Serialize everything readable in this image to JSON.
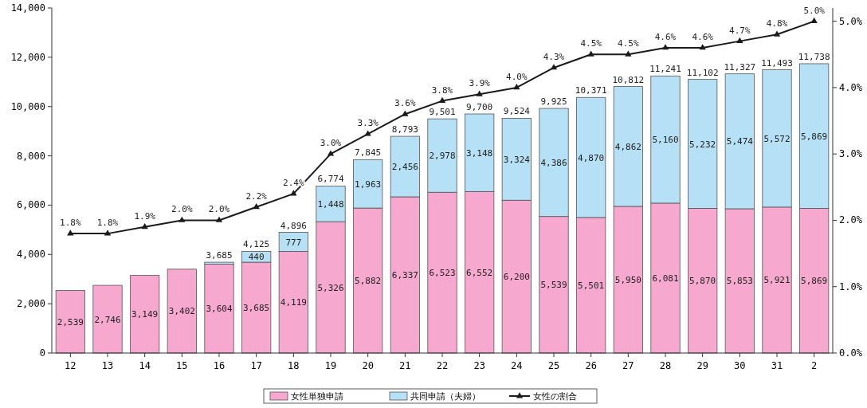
{
  "chart_data": {
    "type": "bar",
    "stacked": true,
    "categories": [
      "12",
      "13",
      "14",
      "15",
      "16",
      "17",
      "18",
      "19",
      "20",
      "21",
      "22",
      "23",
      "24",
      "25",
      "26",
      "27",
      "28",
      "29",
      "30",
      "31",
      "2"
    ],
    "series": [
      {
        "name": "女性単独申請",
        "color": "#f7a8cf",
        "values": [
          2539,
          2746,
          3149,
          3402,
          3604,
          3685,
          4119,
          5326,
          5882,
          6337,
          6523,
          6552,
          6200,
          5539,
          5501,
          5950,
          6081,
          5870,
          5853,
          5921,
          5869
        ],
        "value_labels": [
          "2,539",
          "2,746",
          "3,149",
          "3,402",
          "3,604",
          "3,685",
          "4,119",
          "5,326",
          "5,882",
          "6,337",
          "6,523",
          "6,552",
          "6,200",
          "5,539",
          "5,501",
          "5,950",
          "6,081",
          "5,870",
          "5,853",
          "5,921",
          "5,869"
        ]
      },
      {
        "name": "共同申請（夫婦）",
        "color": "#b5e0f5",
        "values": [
          null,
          null,
          null,
          null,
          80,
          440,
          777,
          1448,
          1963,
          2456,
          2978,
          3148,
          3324,
          4386,
          4870,
          4862,
          5160,
          5232,
          5474,
          5572,
          5869
        ],
        "value_labels": [
          null,
          null,
          null,
          null,
          null,
          "440",
          "777",
          "1,448",
          "1,963",
          "2,456",
          "2,978",
          "3,148",
          "3,324",
          "4,386",
          "4,870",
          "4,862",
          "5,160",
          "5,232",
          "5,474",
          "5,572",
          "5,869"
        ]
      },
      {
        "name": "女性の割合",
        "type": "line",
        "axis": "y2",
        "color": "#1a1a1a",
        "values": [
          1.8,
          1.8,
          1.9,
          2.0,
          2.0,
          2.2,
          2.4,
          3.0,
          3.3,
          3.6,
          3.8,
          3.9,
          4.0,
          4.3,
          4.5,
          4.5,
          4.6,
          4.6,
          4.7,
          4.8,
          5.0
        ],
        "value_labels": [
          "1.8%",
          "1.8%",
          "1.9%",
          "2.0%",
          "2.0%",
          "2.2%",
          "2.4%",
          "3.0%",
          "3.3%",
          "3.6%",
          "3.8%",
          "3.9%",
          "4.0%",
          "4.3%",
          "4.5%",
          "4.5%",
          "4.6%",
          "4.6%",
          "4.7%",
          "4.8%",
          "5.0%"
        ]
      }
    ],
    "totals": [
      null,
      null,
      null,
      null,
      "3,685",
      "4,125",
      "4,896",
      "6,774",
      "7,845",
      "8,793",
      "9,501",
      "9,700",
      "9,524",
      "9,925",
      "10,371",
      "10,812",
      "11,241",
      "11,102",
      "11,327",
      "11,493",
      "11,738"
    ],
    "ylim": [
      0,
      14000
    ],
    "yticks": [
      {
        "value": 0,
        "label": "0"
      },
      {
        "value": 2000,
        "label": "2,000"
      },
      {
        "value": 4000,
        "label": "4,000"
      },
      {
        "value": 6000,
        "label": "6,000"
      },
      {
        "value": 8000,
        "label": "8,000"
      },
      {
        "value": 10000,
        "label": "10,000"
      },
      {
        "value": 12000,
        "label": "12,000"
      },
      {
        "value": 14000,
        "label": "14,000"
      }
    ],
    "y2lim": [
      0,
      5.2
    ],
    "y2ticks": [
      {
        "value": 0,
        "label": "0.0%"
      },
      {
        "value": 1,
        "label": "1.0%"
      },
      {
        "value": 2,
        "label": "2.0%"
      },
      {
        "value": 3,
        "label": "3.0%"
      },
      {
        "value": 4,
        "label": "4.0%"
      },
      {
        "value": 5,
        "label": "5.0%"
      }
    ],
    "marker": "triangle",
    "legend": "bottom",
    "grid": false
  }
}
